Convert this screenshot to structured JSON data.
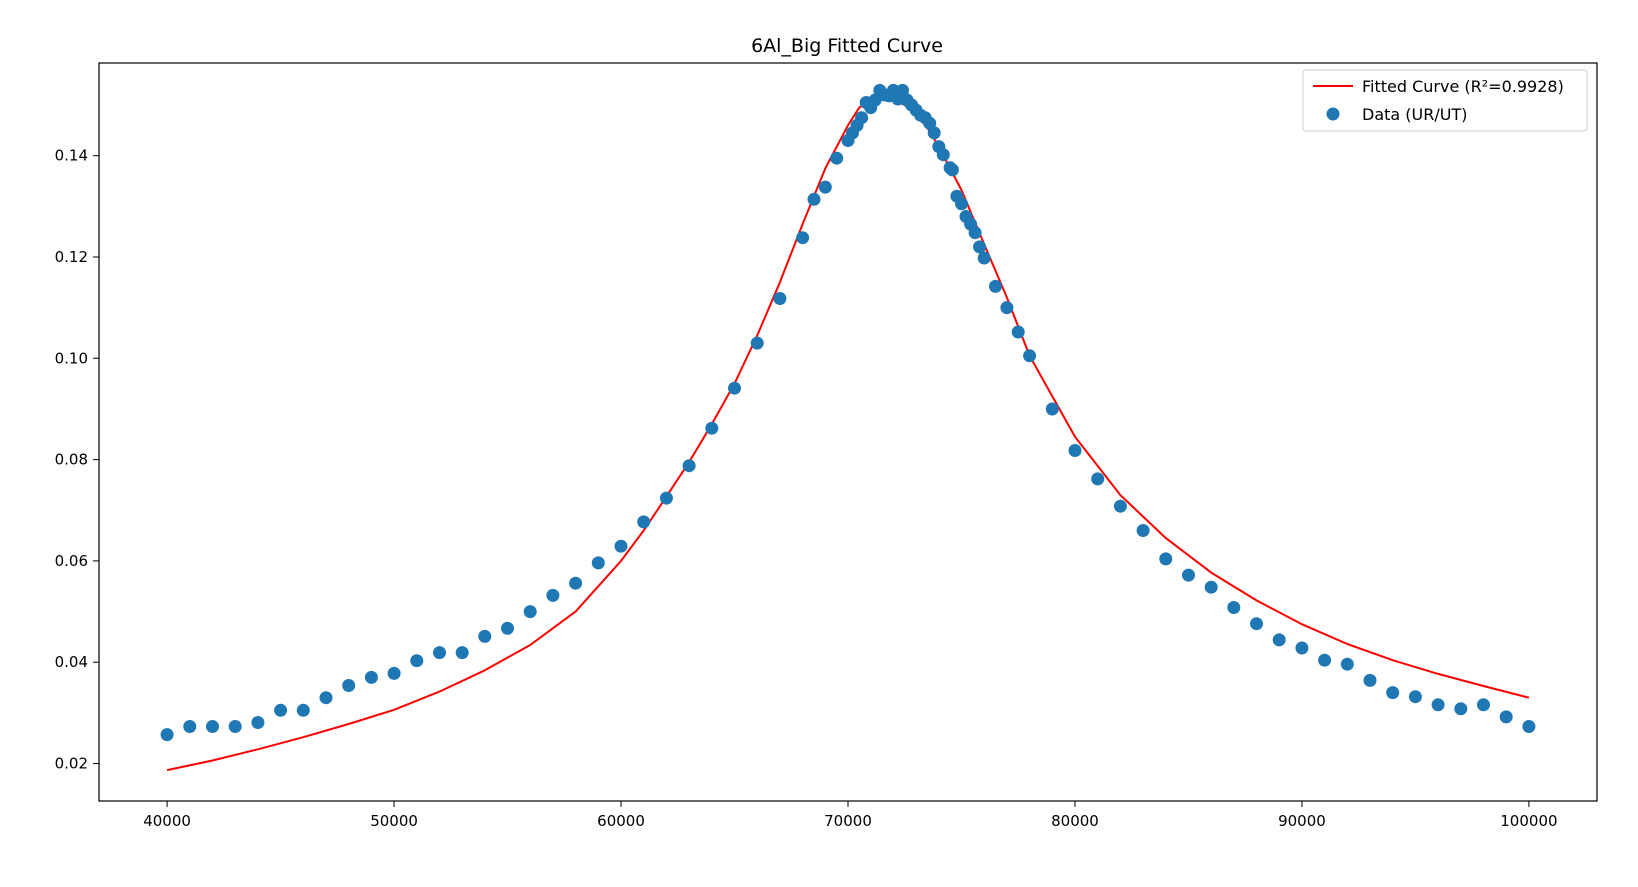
{
  "chart_data": {
    "type": "scatter",
    "title": "6Al_Big Fitted Curve",
    "xlabel": "",
    "ylabel": "",
    "xlim": [
      37000,
      103000
    ],
    "ylim": [
      0.0126,
      0.1583
    ],
    "x_ticks": [
      40000,
      50000,
      60000,
      70000,
      80000,
      90000,
      100000
    ],
    "y_ticks": [
      0.02,
      0.04,
      0.06,
      0.08,
      0.1,
      0.12,
      0.14
    ],
    "y_tick_labels": [
      "0.02",
      "0.04",
      "0.06",
      "0.08",
      "0.10",
      "0.12",
      "0.14"
    ],
    "grid": false,
    "legend_position": "top-right",
    "colors": {
      "fit": "#ff0000",
      "data": "#1f77b4",
      "axes": "#000000"
    },
    "series": [
      {
        "name": "Fitted Curve (R²=0.9928)",
        "kind": "line",
        "x": [
          40000,
          42000,
          44000,
          46000,
          48000,
          50000,
          52000,
          54000,
          56000,
          58000,
          60000,
          61000,
          62000,
          63000,
          64000,
          65000,
          66000,
          67000,
          68000,
          69000,
          70000,
          70500,
          71000,
          71500,
          72000,
          72500,
          73000,
          73500,
          74000,
          75000,
          76000,
          77000,
          78000,
          80000,
          82000,
          84000,
          86000,
          88000,
          90000,
          92000,
          94000,
          96000,
          98000,
          100000
        ],
        "y": [
          0.0187,
          0.0206,
          0.0228,
          0.0252,
          0.0278,
          0.0306,
          0.0342,
          0.0384,
          0.0434,
          0.05,
          0.06,
          0.066,
          0.0727,
          0.0795,
          0.087,
          0.095,
          0.1045,
          0.115,
          0.1265,
          0.1375,
          0.146,
          0.1495,
          0.1512,
          0.1515,
          0.151,
          0.15,
          0.1482,
          0.1455,
          0.1418,
          0.1332,
          0.1225,
          0.112,
          0.1005,
          0.0845,
          0.073,
          0.0645,
          0.0577,
          0.0522,
          0.0475,
          0.0436,
          0.0404,
          0.0377,
          0.0353,
          0.033
        ]
      },
      {
        "name": "Data (UR/UT)",
        "kind": "scatter",
        "x": [
          40000,
          41000,
          42000,
          43000,
          44000,
          45000,
          46000,
          47000,
          48000,
          49000,
          50000,
          51000,
          52000,
          53000,
          54000,
          55000,
          56000,
          57000,
          58000,
          59000,
          60000,
          61000,
          62000,
          63000,
          64000,
          65000,
          66000,
          67000,
          68000,
          68500,
          69000,
          69500,
          70000,
          70200,
          70400,
          70600,
          70800,
          71000,
          71200,
          71400,
          71600,
          71800,
          72000,
          72200,
          72400,
          72600,
          72800,
          73000,
          73200,
          73400,
          73600,
          73800,
          74000,
          74200,
          74500,
          74600,
          74800,
          75000,
          75200,
          75400,
          75600,
          75800,
          76000,
          76500,
          77000,
          77500,
          78000,
          79000,
          80000,
          81000,
          82000,
          83000,
          84000,
          85000,
          86000,
          87000,
          88000,
          89000,
          90000,
          91000,
          92000,
          93000,
          94000,
          95000,
          96000,
          97000,
          98000,
          99000,
          100000
        ],
        "y": [
          0.0257,
          0.0273,
          0.0273,
          0.0273,
          0.0281,
          0.0305,
          0.0305,
          0.033,
          0.0354,
          0.037,
          0.0378,
          0.0403,
          0.0419,
          0.0419,
          0.0451,
          0.0467,
          0.05,
          0.0532,
          0.0556,
          0.0596,
          0.0629,
          0.0677,
          0.0724,
          0.0788,
          0.0862,
          0.0941,
          0.103,
          0.1118,
          0.1238,
          0.1314,
          0.1338,
          0.1395,
          0.143,
          0.1445,
          0.146,
          0.1475,
          0.1505,
          0.1495,
          0.151,
          0.1529,
          0.152,
          0.1518,
          0.1529,
          0.1512,
          0.1529,
          0.151,
          0.15,
          0.149,
          0.148,
          0.1475,
          0.1464,
          0.1445,
          0.1418,
          0.1402,
          0.1376,
          0.1372,
          0.132,
          0.1305,
          0.128,
          0.1265,
          0.1248,
          0.122,
          0.1198,
          0.1142,
          0.11,
          0.1052,
          0.1005,
          0.09,
          0.0818,
          0.0762,
          0.0708,
          0.066,
          0.0604,
          0.0572,
          0.0548,
          0.0508,
          0.0476,
          0.0444,
          0.0428,
          0.0404,
          0.0396,
          0.0364,
          0.034,
          0.0332,
          0.0316,
          0.0308,
          0.0316,
          0.0292,
          0.0273
        ]
      }
    ]
  }
}
